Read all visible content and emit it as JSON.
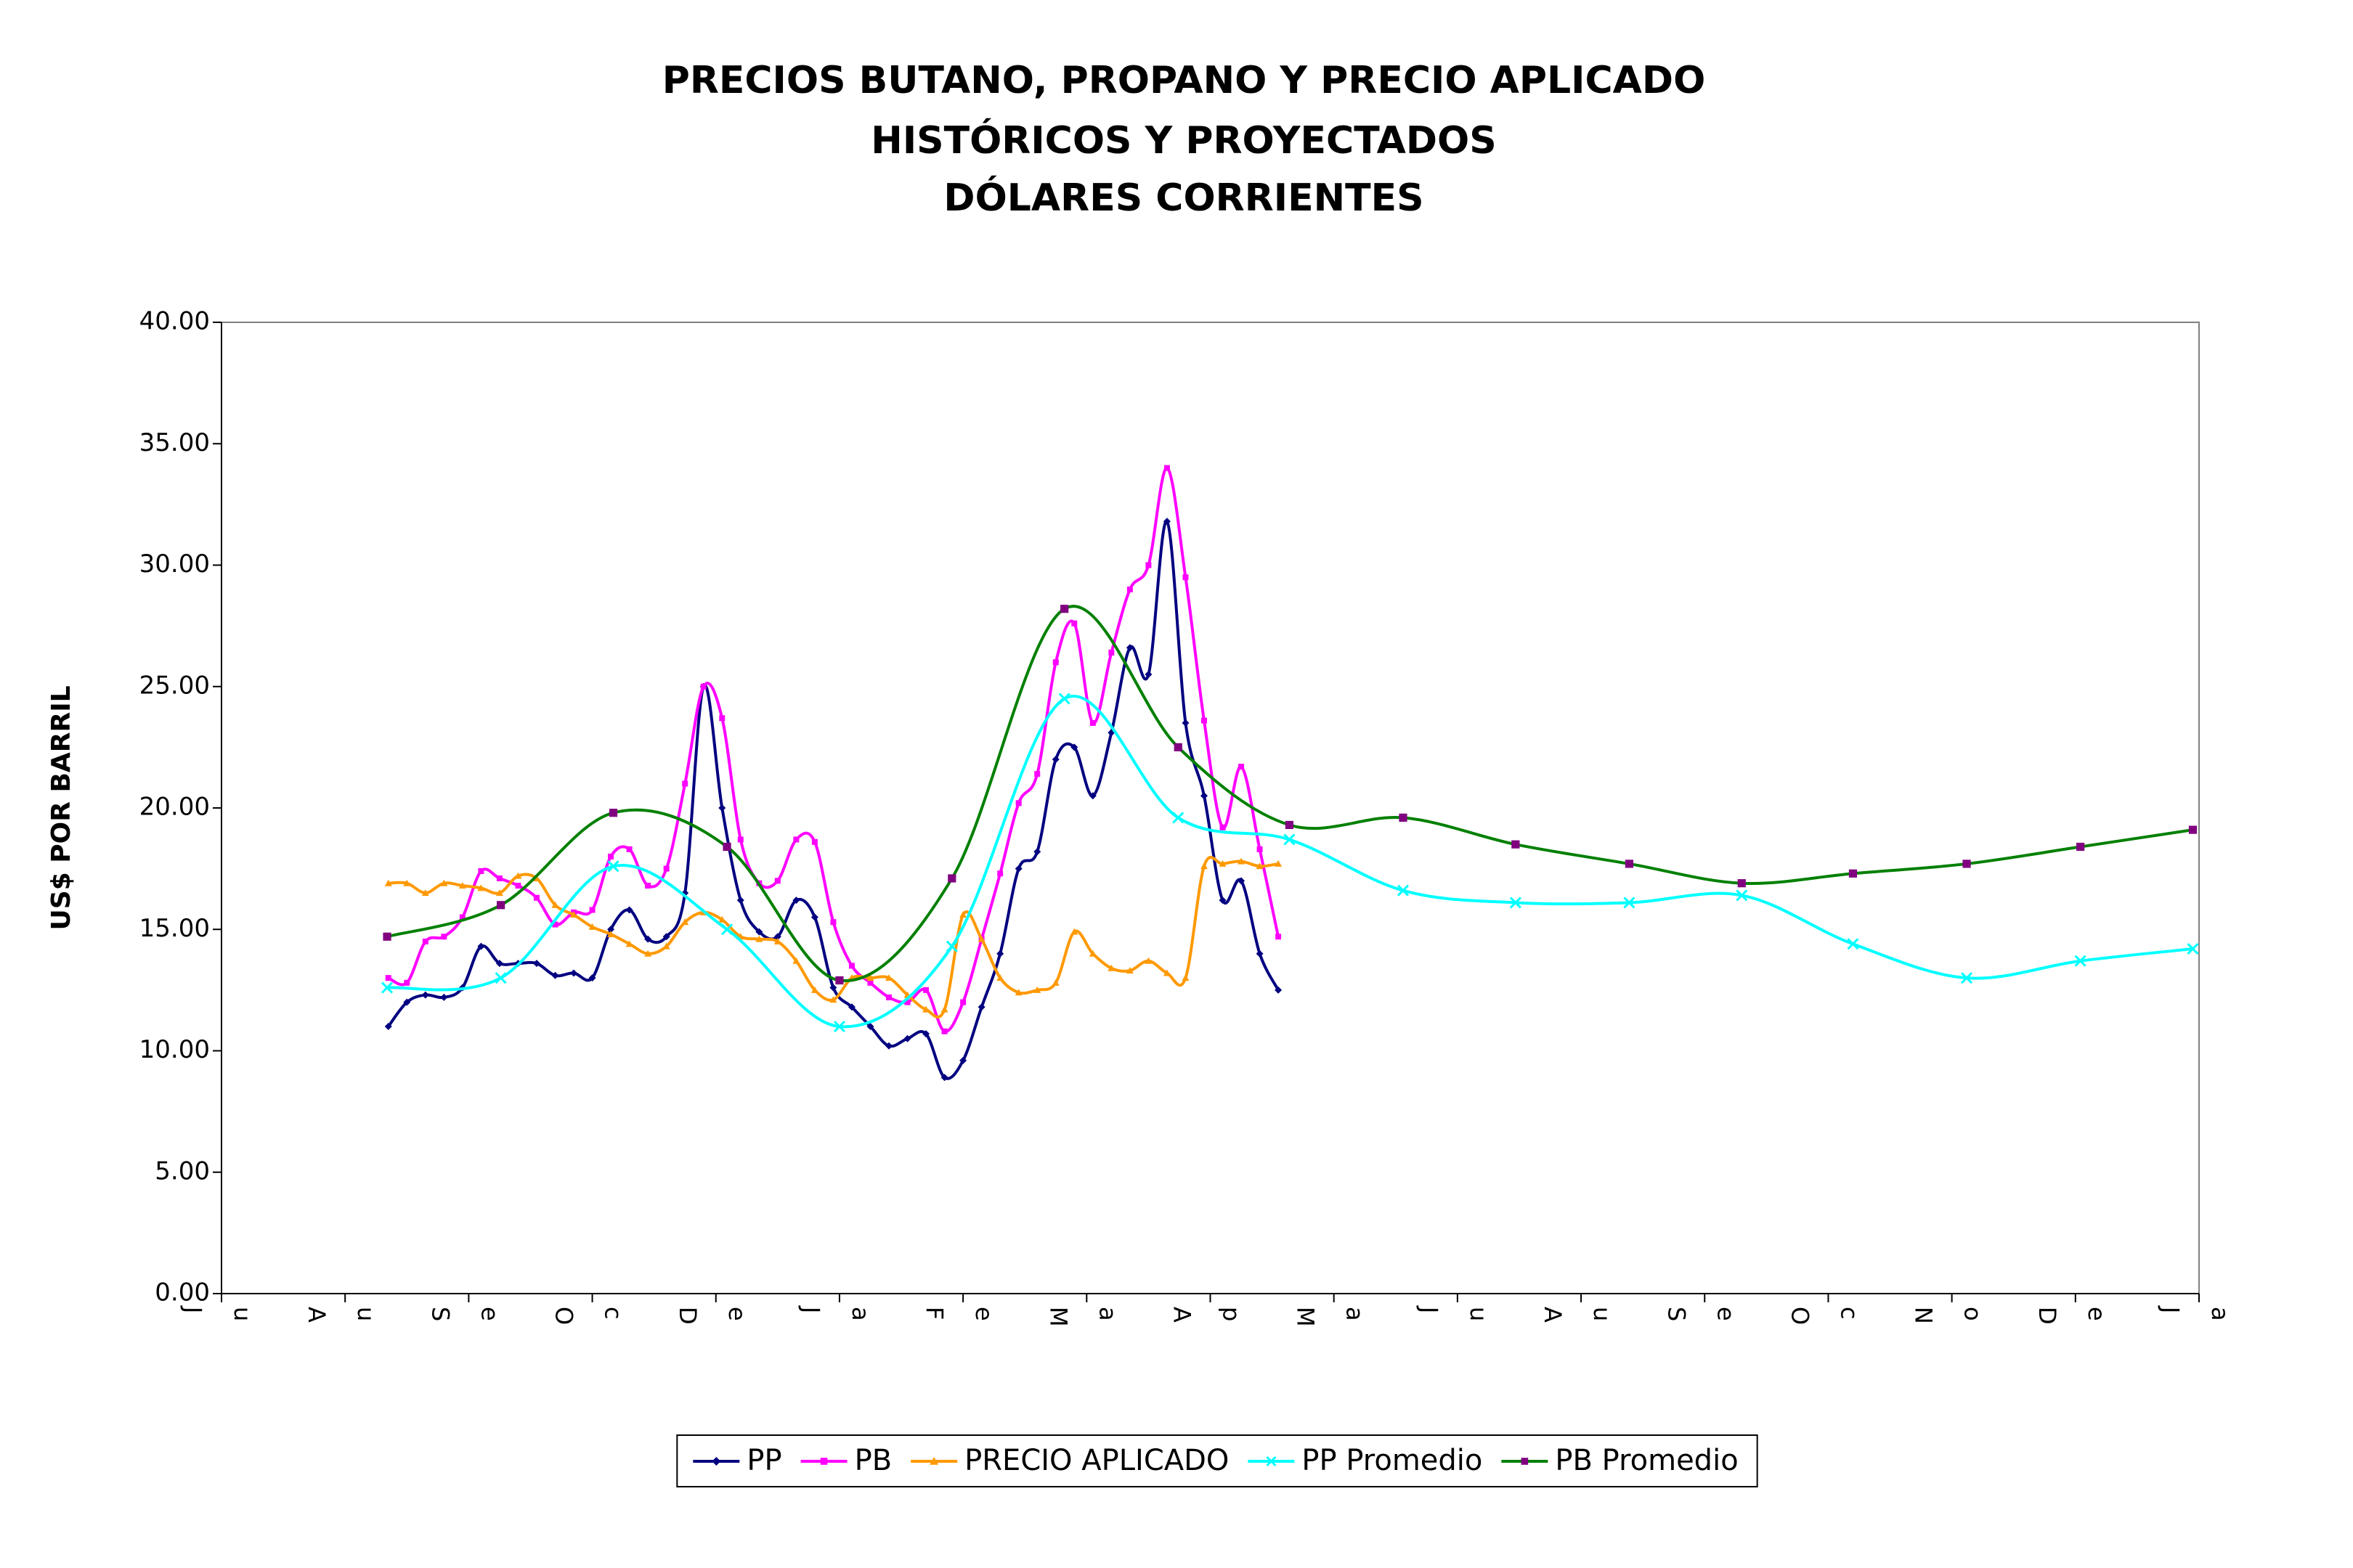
{
  "chart_data": {
    "type": "line",
    "title": [
      "PRECIOS BUTANO, PROPANO Y PRECIO APLICADO",
      "HISTÓRICOS Y PROYECTADOS",
      "DÓLARES CORRIENTES"
    ],
    "ylabel": "US$ POR BARRIL",
    "xlim": [
      0,
      16
    ],
    "xticks": [
      {
        "value": 0,
        "label": [
          "J",
          "u"
        ]
      },
      {
        "value": 1,
        "label": [
          "A",
          "u"
        ]
      },
      {
        "value": 2,
        "label": [
          "S",
          "e"
        ]
      },
      {
        "value": 3,
        "label": [
          "O",
          "c"
        ]
      },
      {
        "value": 4,
        "label": [
          "D",
          "e"
        ]
      },
      {
        "value": 5,
        "label": [
          "J",
          "a"
        ]
      },
      {
        "value": 6,
        "label": [
          "F",
          "e"
        ]
      },
      {
        "value": 7,
        "label": [
          "M",
          "a"
        ]
      },
      {
        "value": 8,
        "label": [
          "A",
          "p"
        ]
      },
      {
        "value": 9,
        "label": [
          "M",
          "a"
        ]
      },
      {
        "value": 10,
        "label": [
          "J",
          "u"
        ]
      },
      {
        "value": 11,
        "label": [
          "A",
          "u"
        ]
      },
      {
        "value": 12,
        "label": [
          "S",
          "e"
        ]
      },
      {
        "value": 13,
        "label": [
          "O",
          "c"
        ]
      },
      {
        "value": 14,
        "label": [
          "N",
          "o"
        ]
      },
      {
        "value": 15,
        "label": [
          "D",
          "e"
        ]
      },
      {
        "value": 16,
        "label": [
          "J",
          "a"
        ]
      }
    ],
    "ylim": [
      0,
      40
    ],
    "yticks": [
      {
        "value": 0,
        "label": "0.00"
      },
      {
        "value": 5,
        "label": "5.00"
      },
      {
        "value": 10,
        "label": "10.00"
      },
      {
        "value": 15,
        "label": "15.00"
      },
      {
        "value": 20,
        "label": "20.00"
      },
      {
        "value": 25,
        "label": "25.00"
      },
      {
        "value": 30,
        "label": "30.00"
      },
      {
        "value": 35,
        "label": "35.00"
      },
      {
        "value": 40,
        "label": "40.00"
      }
    ],
    "x": [
      1.35,
      1.5,
      1.65,
      1.8,
      1.95,
      2.1,
      2.25,
      2.4,
      2.55,
      2.7,
      2.85,
      3,
      3.15,
      3.3,
      3.45,
      3.6,
      3.75,
      3.9,
      4.05,
      4.2,
      4.35,
      4.5,
      4.65,
      4.8,
      4.95,
      5.1,
      5.25,
      5.4,
      5.55,
      5.7,
      5.85,
      6,
      6.15,
      6.3,
      6.45,
      6.6,
      6.75,
      6.9,
      7.05,
      7.2,
      7.35,
      7.5,
      7.65,
      7.8,
      7.95,
      8.1,
      8.25,
      8.4,
      8.55
    ],
    "series": [
      {
        "name": "PP",
        "color": "#000080",
        "marker": "diamond",
        "values": [
          11.0,
          12.0,
          12.3,
          12.2,
          12.6,
          14.3,
          13.6,
          13.6,
          13.6,
          13.1,
          13.2,
          13.0,
          15.0,
          15.8,
          14.6,
          14.7,
          16.5,
          25.0,
          20.0,
          16.2,
          14.9,
          14.7,
          16.2,
          15.5,
          12.6,
          11.8,
          11.0,
          10.2,
          10.5,
          10.7,
          8.9,
          9.6,
          11.8,
          14.0,
          17.5,
          18.2,
          22.0,
          22.5,
          20.5,
          23.1,
          26.6,
          25.5,
          31.8,
          23.5,
          20.5,
          16.2,
          17.0,
          14.0,
          12.5
        ]
      },
      {
        "name": "PB",
        "color": "#ff00ff",
        "marker": "square",
        "values": [
          13.0,
          12.8,
          14.5,
          14.7,
          15.5,
          17.4,
          17.1,
          16.8,
          16.3,
          15.2,
          15.7,
          15.8,
          18.0,
          18.3,
          16.8,
          17.5,
          21.0,
          25.0,
          23.7,
          18.7,
          16.9,
          17.0,
          18.7,
          18.6,
          15.3,
          13.5,
          12.8,
          12.2,
          12.0,
          12.5,
          10.8,
          12.0,
          14.6,
          17.3,
          20.2,
          21.4,
          26.0,
          27.6,
          23.5,
          26.4,
          29.0,
          30.0,
          34.0,
          29.5,
          23.6,
          19.2,
          21.7,
          18.3,
          14.7
        ]
      },
      {
        "name": "PRECIO APLICADO",
        "color": "#ff9900",
        "marker": "triangle",
        "values": [
          16.9,
          16.9,
          16.5,
          16.9,
          16.8,
          16.7,
          16.5,
          17.2,
          17.1,
          16.0,
          15.6,
          15.1,
          14.8,
          14.4,
          14.0,
          14.3,
          15.3,
          15.7,
          15.4,
          14.7,
          14.6,
          14.5,
          13.7,
          12.5,
          12.1,
          13.0,
          13.0,
          13.0,
          12.3,
          11.7,
          11.7,
          15.6,
          14.6,
          13.0,
          12.4,
          12.5,
          12.8,
          14.9,
          14.0,
          13.4,
          13.3,
          13.7,
          13.2,
          13.0,
          17.6,
          17.7,
          17.8,
          17.6,
          17.7
        ]
      },
      {
        "name": "PP Promedio",
        "color": "#00ffff",
        "marker": "x",
        "x": [
          1.34,
          2.26,
          3.17,
          4.09,
          5.0,
          5.91,
          6.82,
          7.74,
          8.64,
          9.56,
          10.47,
          11.39,
          12.3,
          13.2,
          14.12,
          15.04,
          15.95
        ],
        "values": [
          12.6,
          13.0,
          17.6,
          15.0,
          11.0,
          14.3,
          24.5,
          19.6,
          18.7,
          16.6,
          16.1,
          16.1,
          16.4,
          14.4,
          13.0,
          13.7,
          14.2
        ]
      },
      {
        "name": "PB Promedio",
        "color": "#008000",
        "marker": "square",
        "marker_color": "#800080",
        "x": [
          1.34,
          2.26,
          3.17,
          4.09,
          5.0,
          5.91,
          6.82,
          7.74,
          8.64,
          9.56,
          10.47,
          11.39,
          12.3,
          13.2,
          14.12,
          15.04,
          15.95
        ],
        "values": [
          14.7,
          16.0,
          19.8,
          18.4,
          12.9,
          17.1,
          28.2,
          22.5,
          19.3,
          19.6,
          18.5,
          17.7,
          16.9,
          17.3,
          17.7,
          18.4,
          19.1
        ]
      }
    ],
    "legend": "bottom"
  }
}
